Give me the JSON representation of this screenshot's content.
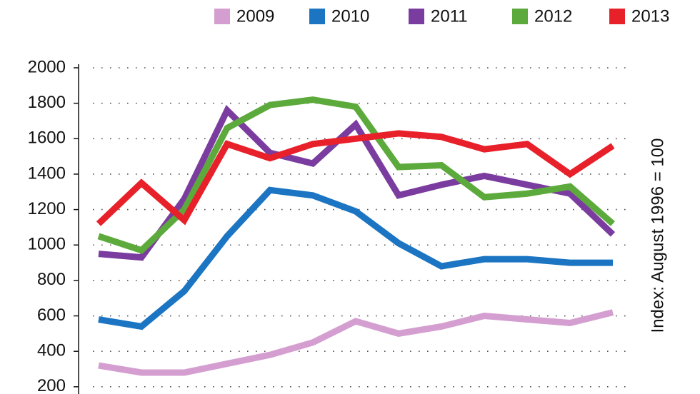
{
  "chart_data": {
    "type": "line",
    "y_label": "Index: August 1996 = 100",
    "categories": [
      null,
      null,
      null,
      null,
      null,
      null,
      null,
      null,
      null,
      null,
      null,
      null,
      null
    ],
    "series": [
      {
        "name": "2009",
        "color": "#d49fd0",
        "values": [
          320,
          280,
          280,
          330,
          380,
          450,
          570,
          500,
          540,
          600,
          580,
          560,
          620
        ]
      },
      {
        "name": "2010",
        "color": "#1b75c2",
        "values": [
          580,
          540,
          740,
          1050,
          1310,
          1280,
          1190,
          1010,
          880,
          920,
          920,
          900,
          900
        ]
      },
      {
        "name": "2011",
        "color": "#7a3d9f",
        "values": [
          950,
          930,
          1260,
          1760,
          1520,
          1460,
          1680,
          1280,
          1340,
          1390,
          1340,
          1290,
          1060
        ]
      },
      {
        "name": "2012",
        "color": "#5daa3c",
        "values": [
          1050,
          970,
          1200,
          1660,
          1790,
          1820,
          1780,
          1440,
          1450,
          1270,
          1290,
          1330,
          1120
        ]
      },
      {
        "name": "2013",
        "color": "#e8202a",
        "values": [
          1120,
          1350,
          1140,
          1570,
          1490,
          1570,
          1600,
          1630,
          1610,
          1540,
          1570,
          1400,
          1560
        ]
      }
    ],
    "ylim": [
      0,
      2000
    ],
    "yticks": [
      200,
      400,
      600,
      800,
      1000,
      1200,
      1400,
      1600,
      1800,
      2000
    ],
    "grid": true
  }
}
